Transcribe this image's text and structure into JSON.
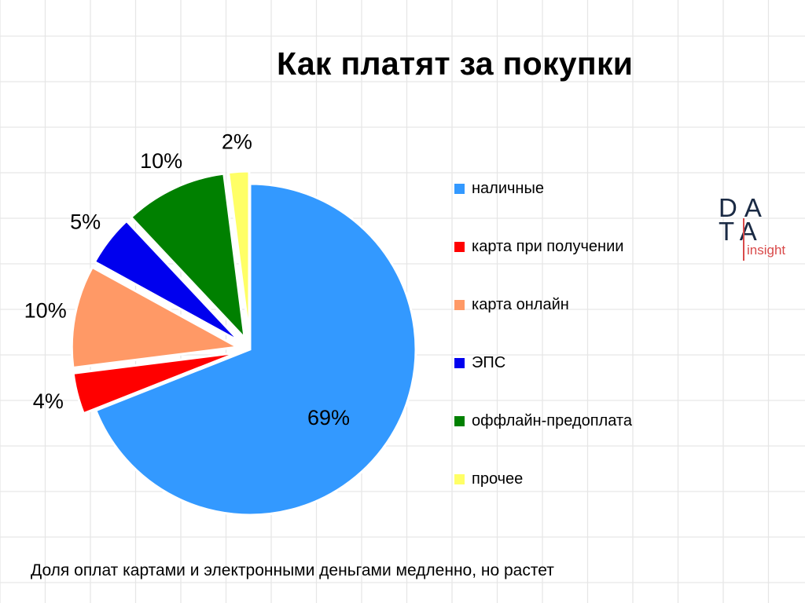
{
  "title": "Как платят за покупки",
  "footnote": "Доля оплат картами и электронными деньгами медленно, но растет",
  "logo": {
    "word_top": "DA",
    "word_bottom": "TA",
    "sub": "insight"
  },
  "chart_data": {
    "type": "pie",
    "title": "Как платят за покупки",
    "slices": [
      {
        "label": "наличные",
        "value": 69,
        "value_label": "69%",
        "color": "#3399ff",
        "exploded": false
      },
      {
        "label": "карта при получении",
        "value": 4,
        "value_label": "4%",
        "color": "#ff0000",
        "exploded": true
      },
      {
        "label": "карта онлайн",
        "value": 10,
        "value_label": "10%",
        "color": "#ff9966",
        "exploded": true
      },
      {
        "label": "ЭПС",
        "value": 5,
        "value_label": "5%",
        "color": "#0000ee",
        "exploded": true
      },
      {
        "label": "оффлайн-предоплата",
        "value": 10,
        "value_label": "10%",
        "color": "#008000",
        "exploded": true
      },
      {
        "label": "прочее",
        "value": 2,
        "value_label": "2%",
        "color": "#ffff66",
        "exploded": true
      }
    ],
    "legend_position": "right"
  }
}
